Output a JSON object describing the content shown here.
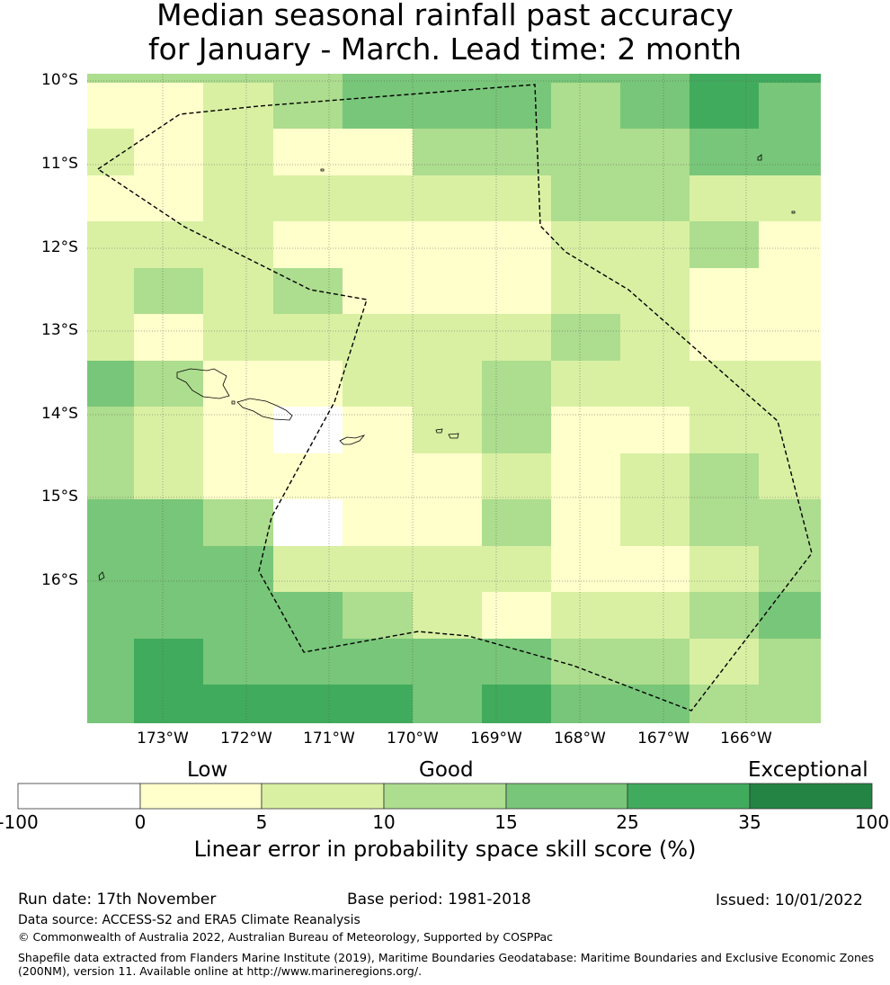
{
  "title": {
    "line1": "Median seasonal rainfall past accuracy",
    "line2": "for January - March. Lead time: 2 month"
  },
  "map": {
    "lat_labels": [
      "10°S",
      "11°S",
      "12°S",
      "13°S",
      "14°S",
      "15°S",
      "16°S"
    ],
    "lon_labels": [
      "173°W",
      "172°W",
      "171°W",
      "170°W",
      "169°W",
      "168°W",
      "167°W",
      "166°W"
    ],
    "palette": [
      "#ffffff",
      "#ffffcc",
      "#d9f0a3",
      "#addd8e",
      "#78c679",
      "#41ab5d",
      "#238443"
    ],
    "grid_categories": [
      [
        1,
        1,
        2,
        3,
        4,
        4,
        4,
        3,
        4,
        5,
        4
      ],
      [
        2,
        1,
        2,
        1,
        1,
        3,
        3,
        3,
        3,
        4,
        4
      ],
      [
        1,
        1,
        2,
        2,
        2,
        2,
        2,
        3,
        3,
        2,
        2
      ],
      [
        2,
        2,
        2,
        1,
        1,
        1,
        1,
        2,
        2,
        3,
        1
      ],
      [
        2,
        3,
        2,
        3,
        1,
        1,
        1,
        2,
        2,
        1,
        1
      ],
      [
        2,
        1,
        2,
        2,
        2,
        2,
        2,
        3,
        2,
        1,
        1
      ],
      [
        4,
        3,
        1,
        1,
        2,
        2,
        3,
        2,
        2,
        2,
        2
      ],
      [
        3,
        2,
        1,
        0,
        1,
        2,
        3,
        1,
        1,
        2,
        2
      ],
      [
        3,
        2,
        1,
        1,
        1,
        1,
        2,
        1,
        2,
        3,
        2
      ],
      [
        4,
        4,
        3,
        0,
        1,
        1,
        3,
        1,
        2,
        3,
        3
      ],
      [
        4,
        4,
        4,
        2,
        2,
        2,
        2,
        1,
        1,
        2,
        3
      ],
      [
        4,
        4,
        4,
        4,
        3,
        2,
        1,
        2,
        2,
        3,
        4
      ],
      [
        4,
        5,
        4,
        4,
        4,
        4,
        4,
        3,
        3,
        2,
        3
      ],
      [
        4,
        5,
        5,
        5,
        5,
        4,
        5,
        4,
        4,
        3,
        3
      ]
    ]
  },
  "colorbar": {
    "categories": [
      "Low",
      "Good",
      "Exceptional"
    ],
    "ticks": [
      "-100",
      "0",
      "5",
      "10",
      "15",
      "25",
      "35",
      "100"
    ],
    "title": "Linear error in probability space skill score (%)"
  },
  "footer": {
    "run_date": "Run date: 17th November",
    "base_period": "Base period: 1981-2018",
    "issued": "Issued: 10/01/2022",
    "data_source": "Data source: ACCESS-S2 and ERA5 Climate Reanalysis",
    "copyright": "© Commonwealth of Australia 2022, Australian Bureau of Meteorology, Supported by COSPPac",
    "shapefile_line1": "Shapefile data extracted from Flanders Marine Institute (2019), Maritime Boundaries Geodatabase: Maritime Boundaries and Exclusive Economic Zones",
    "shapefile_line2": "(200NM), version 11. Available online at http://www.marineregions.org/."
  }
}
